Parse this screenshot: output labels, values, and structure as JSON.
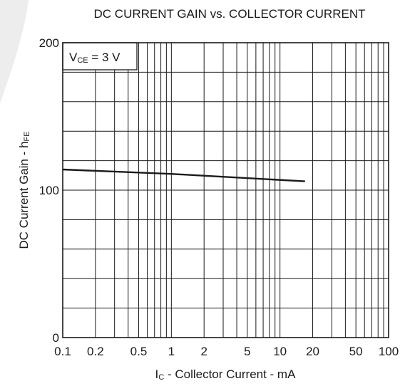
{
  "chart_data": {
    "type": "line",
    "title": "DC CURRENT GAIN vs. COLLECTOR CURRENT",
    "xlabel": {
      "main": "I",
      "sub": "C",
      "rest": " - Collector Current - mA"
    },
    "ylabel": {
      "main": "DC Current Gain - h",
      "sub": "FE"
    },
    "annotation": {
      "main": "V",
      "sub": "CE",
      "rest": " = 3 V"
    },
    "x_scale": "log",
    "xlim": [
      0.1,
      100
    ],
    "ylim": [
      0,
      200
    ],
    "x_ticks": [
      0.1,
      0.2,
      0.5,
      1,
      2,
      5,
      10,
      20,
      50,
      100
    ],
    "x_tick_labels": [
      "0.1",
      "0.2",
      "0.5",
      "1",
      "2",
      "5",
      "10",
      "20",
      "50",
      "100"
    ],
    "y_ticks": [
      0,
      100,
      200
    ],
    "y_tick_labels": [
      "0",
      "100",
      "200"
    ],
    "y_minor_step": 20,
    "grid": true,
    "series": [
      {
        "x": [
          0.1,
          1,
          17
        ],
        "y": [
          114,
          111,
          106
        ]
      }
    ]
  }
}
